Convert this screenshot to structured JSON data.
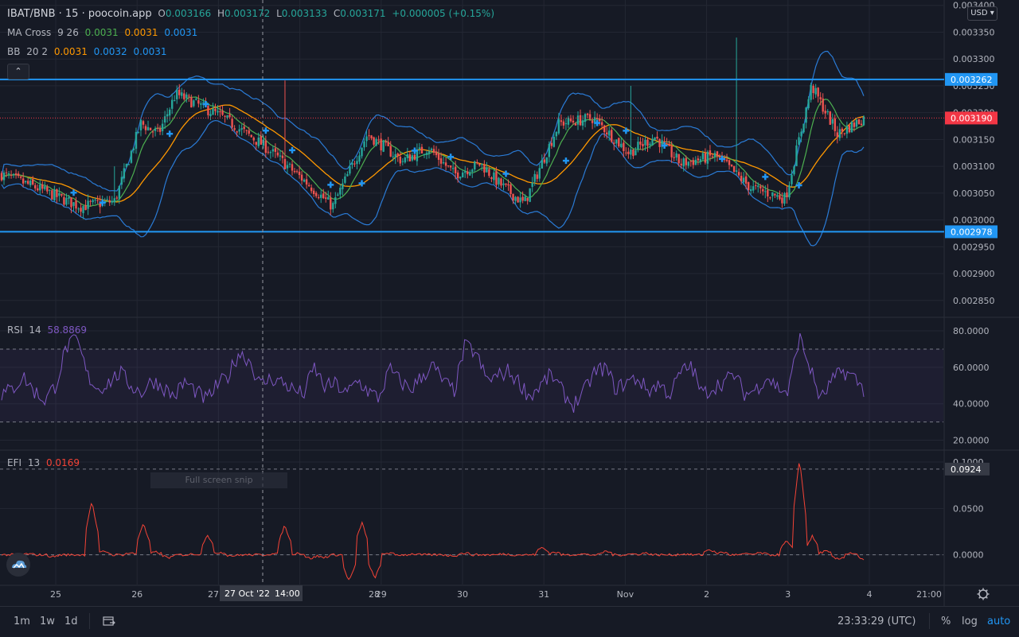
{
  "header": {
    "symbol": "IBAT/BNB · 15 · poocoin.app",
    "open_label": "O",
    "open": "0.003166",
    "high_label": "H",
    "high": "0.003172",
    "low_label": "L",
    "low": "0.003133",
    "close_label": "C",
    "close": "0.003171",
    "change": "+0.000005 (+0.15%)"
  },
  "legends": {
    "ma": {
      "name": "MA Cross",
      "params": "9 26",
      "v1": "0.0031",
      "v2": "0.0031",
      "v3": "0.0031"
    },
    "bb": {
      "name": "BB",
      "params": "20 2",
      "v1": "0.0031",
      "v2": "0.0032",
      "v3": "0.0031"
    },
    "rsi": {
      "name": "RSI",
      "params": "14",
      "value": "58.8869"
    },
    "efi": {
      "name": "EFI",
      "params": "13",
      "value": "0.0169"
    }
  },
  "currency_select": "USD",
  "collapse_icon": "chevron-up-icon",
  "colors": {
    "bg": "#161a25",
    "grid": "#232733",
    "bull": "#26a69a",
    "bear": "#ef5350",
    "hline": "#2196f3",
    "bb": "#2a7bd6",
    "ma_fast": "#4caf50",
    "ma_slow": "#ff9800",
    "rsi": "#7e57c2",
    "efi": "#f44336",
    "current": "#f23645"
  },
  "chart_data": [
    {
      "type": "candlestick",
      "title": "IBAT/BNB · 15 · poocoin.app",
      "y_ticks": [
        "0.003400",
        "0.003350",
        "0.003300",
        "0.003250",
        "0.003200",
        "0.003150",
        "0.003100",
        "0.003050",
        "0.003000",
        "0.002950",
        "0.002900",
        "0.002850"
      ],
      "ylim": [
        0.00282,
        0.00341
      ],
      "x_ticks": [
        "25",
        "26",
        "27",
        "28",
        "29",
        "30",
        "31",
        "Nov",
        "2",
        "3",
        "4",
        "21:00"
      ],
      "horizontal_lines": [
        {
          "value": 0.003262,
          "label": "0.003262"
        },
        {
          "value": 0.002978,
          "label": "0.002978"
        }
      ],
      "current_price": {
        "value": 0.00319,
        "label": "0.003190"
      },
      "price_path": {
        "x": [
          0,
          0.4,
          0.9,
          1.3,
          1.6,
          1.8,
          2.0,
          2.5,
          3.0,
          3.5,
          3.8,
          4.2,
          4.6,
          4.9,
          5.2,
          5.5,
          5.7,
          6.0,
          6.4,
          6.8,
          7.2,
          7.5,
          7.8,
          8.2,
          8.6,
          9.0,
          9.3,
          9.6,
          9.9
        ],
        "y": [
          0.003085,
          0.00306,
          0.003025,
          0.003035,
          0.00318,
          0.00316,
          0.003235,
          0.003195,
          0.00314,
          0.00307,
          0.003025,
          0.00316,
          0.00311,
          0.003135,
          0.003085,
          0.003105,
          0.00307,
          0.00303,
          0.00318,
          0.00319,
          0.003125,
          0.003155,
          0.003105,
          0.00312,
          0.00306,
          0.00304,
          0.00325,
          0.00316,
          0.00319
        ]
      },
      "indicators": [
        "MA Cross 9 26",
        "BB 20 2"
      ]
    },
    {
      "type": "line",
      "title": "RSI 14",
      "y_ticks": [
        "80.0000",
        "60.0000",
        "40.0000",
        "20.0000"
      ],
      "ylim": [
        15,
        87
      ],
      "bands": [
        70,
        30
      ],
      "series": [
        {
          "name": "RSI 14",
          "values": [
            45,
            48,
            55,
            47,
            42,
            50,
            71,
            75,
            55,
            48,
            52,
            57,
            50,
            46,
            53,
            49,
            44,
            52,
            47,
            42,
            50,
            55,
            68,
            64,
            50,
            54,
            52,
            48,
            45,
            60,
            49,
            51,
            45,
            53,
            47,
            43,
            59,
            52,
            48,
            55,
            61,
            52,
            47,
            72,
            68,
            53,
            55,
            58,
            52,
            44,
            50,
            56,
            47,
            39,
            46,
            57,
            60,
            48,
            52,
            54,
            47,
            51,
            45,
            57,
            61,
            45,
            49,
            52,
            56,
            45,
            48,
            55,
            49,
            46,
            77,
            60,
            42,
            52,
            58,
            55,
            48
          ]
        }
      ]
    },
    {
      "type": "line",
      "title": "EFI 13",
      "y_ticks": [
        "0.1000",
        "0.0924",
        "0.0500",
        "0.0000"
      ],
      "ylim": [
        -0.032,
        0.112
      ],
      "reference_line": {
        "value": 0.0924,
        "label": "0.0924"
      },
      "zero_line": 0,
      "series": [
        {
          "name": "EFI 13",
          "values": [
            0,
            0,
            0.001,
            0,
            -0.002,
            0,
            0,
            0.058,
            0.004,
            0,
            0.002,
            0.034,
            0.003,
            -0.003,
            0,
            0.001,
            0.022,
            0.003,
            -0.001,
            0,
            0,
            0.001,
            0.032,
            0.002,
            -0.004,
            -0.003,
            0,
            -0.028,
            0.035,
            -0.025,
            0.002,
            0,
            0.001,
            0,
            0,
            -0.001,
            0.002,
            0,
            0,
            0.001,
            0,
            0,
            0.008,
            0.003,
            0,
            0.001,
            0,
            0.004,
            0,
            0.001,
            0.002,
            0,
            0,
            0.001,
            0,
            0.006,
            0.003,
            0,
            0.001,
            0.002,
            0,
            0.015,
            0.104,
            0.02,
            0.004,
            -0.005,
            0.002,
            -0.006
          ]
        }
      ]
    }
  ],
  "crosshair": {
    "date_label": "27 Oct '22",
    "time_label": "14:00"
  },
  "tooltip_ghost": "Full screen snip",
  "bottom": {
    "timeframes": [
      "1m",
      "1w",
      "1d"
    ],
    "compare_icon": "calendar-range-icon",
    "clock": "23:33:29 (UTC)",
    "percent": "%",
    "log": "log",
    "auto": "auto"
  },
  "settings_icon": "gear-icon",
  "logo_icon": "cloud-logo-icon"
}
